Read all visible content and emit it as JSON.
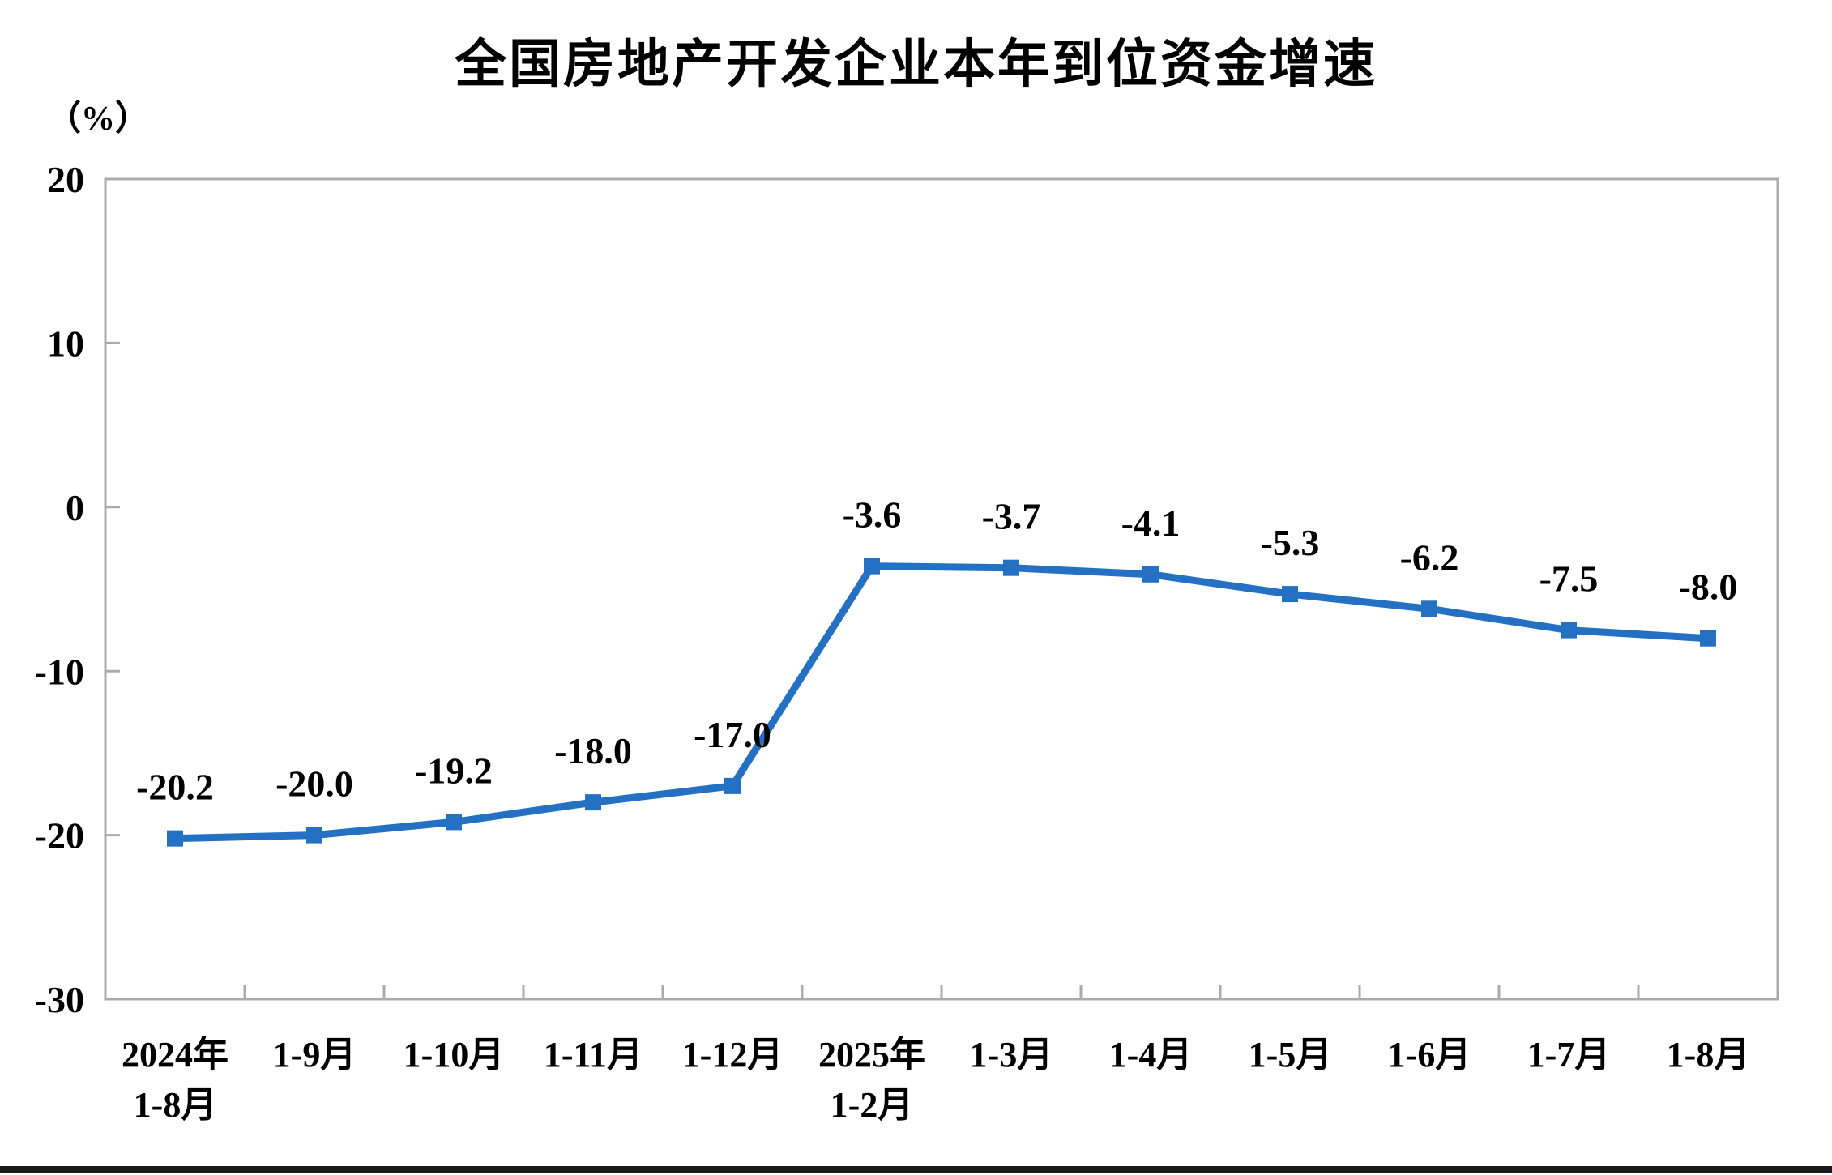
{
  "chart_data": {
    "type": "line",
    "title": "全国房地产开发企业本年到位资金增速",
    "unit_label": "（%）",
    "categories": [
      [
        "2024年",
        "1-8月"
      ],
      [
        "1-9月"
      ],
      [
        "1-10月"
      ],
      [
        "1-11月"
      ],
      [
        "1-12月"
      ],
      [
        "2025年",
        "1-2月"
      ],
      [
        "1-3月"
      ],
      [
        "1-4月"
      ],
      [
        "1-5月"
      ],
      [
        "1-6月"
      ],
      [
        "1-7月"
      ],
      [
        "1-8月"
      ]
    ],
    "values": [
      -20.2,
      -20.0,
      -19.2,
      -18.0,
      -17.0,
      -3.6,
      -3.7,
      -4.1,
      -5.3,
      -6.2,
      -7.5,
      -8.0
    ],
    "data_labels": [
      "-20.2",
      "-20.0",
      "-19.2",
      "-18.0",
      "-17.0",
      "-3.6",
      "-3.7",
      "-4.1",
      "-5.3",
      "-6.2",
      "-7.5",
      "-8.0"
    ],
    "y_ticks": [
      20,
      10,
      0,
      -10,
      -20,
      -30
    ],
    "ylim": [
      -30,
      20
    ],
    "grid": false,
    "legend": "none",
    "colors": {
      "line": "#2471C4",
      "marker": "#2471C4",
      "axis": "#ABABAB",
      "text": "#000000",
      "divider": "#1A1A1A"
    }
  }
}
